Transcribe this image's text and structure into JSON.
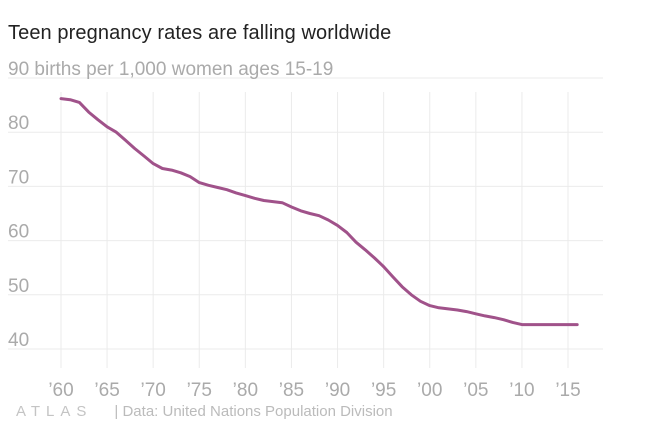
{
  "chart_data": {
    "type": "line",
    "title": "Teen pregnancy rates are falling worldwide",
    "ylabel": "births per 1,000 women ages 15-19",
    "xlabel": "",
    "ylim": [
      36,
      91
    ],
    "xlim": [
      1959,
      2018
    ],
    "yticks": [
      40,
      50,
      60,
      70,
      80,
      90
    ],
    "ytick_labels": [
      "40",
      "50",
      "60",
      "70",
      "80",
      "90"
    ],
    "top_label_suffix": "births per 1,000 women ages 15-19",
    "xticks": [
      1960,
      1965,
      1970,
      1975,
      1980,
      1985,
      1990,
      1995,
      2000,
      2005,
      2010,
      2015
    ],
    "xtick_labels": [
      "’60",
      "’65",
      "’70",
      "’75",
      "’80",
      "’85",
      "’90",
      "’95",
      "’00",
      "’05",
      "’10",
      "’15"
    ],
    "series": [
      {
        "name": "Teen pregnancy rate",
        "color": "#a0528a",
        "x": [
          1960,
          1961,
          1962,
          1963,
          1964,
          1965,
          1966,
          1967,
          1968,
          1969,
          1970,
          1971,
          1972,
          1973,
          1974,
          1975,
          1976,
          1977,
          1978,
          1979,
          1980,
          1981,
          1982,
          1983,
          1984,
          1985,
          1986,
          1987,
          1988,
          1989,
          1990,
          1991,
          1992,
          1993,
          1994,
          1995,
          1996,
          1997,
          1998,
          1999,
          2000,
          2001,
          2002,
          2003,
          2004,
          2005,
          2006,
          2007,
          2008,
          2009,
          2010,
          2011,
          2012,
          2013,
          2014,
          2015,
          2016
        ],
        "values": [
          86.2,
          86.0,
          85.5,
          83.7,
          82.3,
          81.0,
          80.0,
          78.5,
          77.0,
          75.6,
          74.2,
          73.3,
          73.0,
          72.5,
          71.8,
          70.7,
          70.2,
          69.8,
          69.4,
          68.8,
          68.3,
          67.8,
          67.4,
          67.2,
          67.0,
          66.2,
          65.5,
          65.0,
          64.6,
          63.8,
          62.8,
          61.5,
          59.7,
          58.3,
          56.8,
          55.2,
          53.3,
          51.5,
          50.0,
          48.8,
          48.0,
          47.6,
          47.4,
          47.2,
          46.9,
          46.5,
          46.1,
          45.8,
          45.4,
          44.9,
          44.5,
          44.5,
          44.5,
          44.5,
          44.5,
          44.5,
          44.5
        ]
      }
    ]
  },
  "footer": {
    "brand": "ATLAS",
    "source": "| Data: United Nations Population Division"
  },
  "colors": {
    "line": "#a0528a",
    "grid": "#ebebeb",
    "tick_text": "#aaaaaa",
    "title_text": "#222222"
  }
}
